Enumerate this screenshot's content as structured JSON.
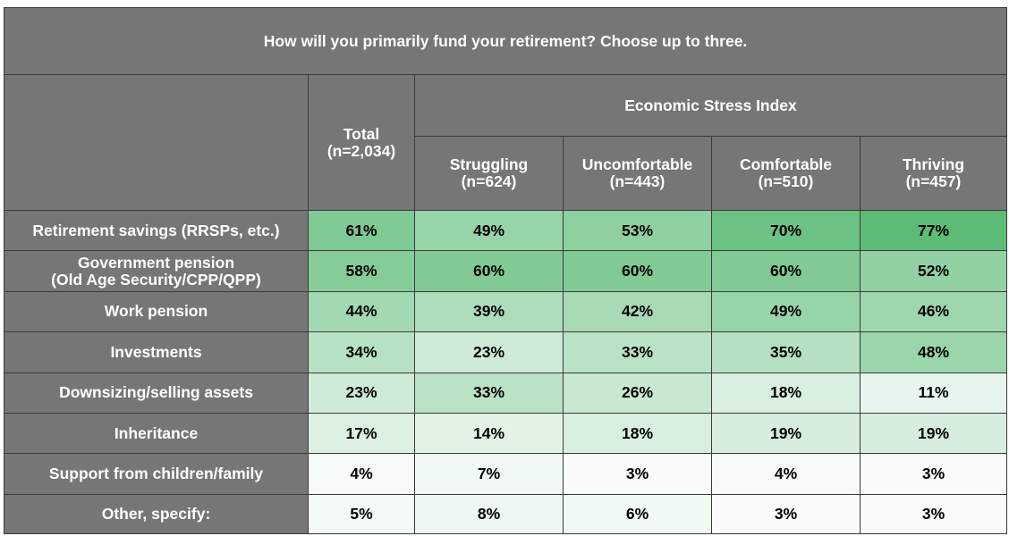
{
  "title": "How will you primarily fund your retirement? Choose up to three.",
  "chart_data": {
    "type": "table",
    "question": "How will you primarily fund your retirement? Choose up to three.",
    "group_header": "Economic Stress Index",
    "columns": [
      {
        "label": "Total",
        "n": "(n=2,034)"
      },
      {
        "label": "Struggling",
        "n": "(n=624)"
      },
      {
        "label": "Uncomfortable",
        "n": "(n=443)"
      },
      {
        "label": "Comfortable",
        "n": "(n=510)"
      },
      {
        "label": "Thriving",
        "n": "(n=457)"
      }
    ],
    "rows": [
      {
        "label": "Retirement savings (RRSPs, etc.)",
        "label2": "",
        "values": [
          61,
          49,
          53,
          70,
          77
        ]
      },
      {
        "label": "Government pension",
        "label2": "(Old Age Security/CPP/QPP)",
        "values": [
          58,
          60,
          60,
          60,
          52
        ]
      },
      {
        "label": "Work pension",
        "label2": "",
        "values": [
          44,
          39,
          42,
          49,
          46
        ]
      },
      {
        "label": "Investments",
        "label2": "",
        "values": [
          34,
          23,
          33,
          35,
          48
        ]
      },
      {
        "label": "Downsizing/selling assets",
        "label2": "",
        "values": [
          23,
          33,
          26,
          18,
          11
        ]
      },
      {
        "label": "Inheritance",
        "label2": "",
        "values": [
          17,
          14,
          18,
          19,
          19
        ]
      },
      {
        "label": "Support from children/family",
        "label2": "",
        "values": [
          4,
          7,
          3,
          4,
          3
        ]
      },
      {
        "label": "Other, specify:",
        "label2": "",
        "values": [
          5,
          8,
          6,
          3,
          3
        ]
      }
    ],
    "value_suffix": "%",
    "heat_color_high": "#5dbb78",
    "heat_color_low": "#ffffff",
    "header_color": "#767676"
  }
}
